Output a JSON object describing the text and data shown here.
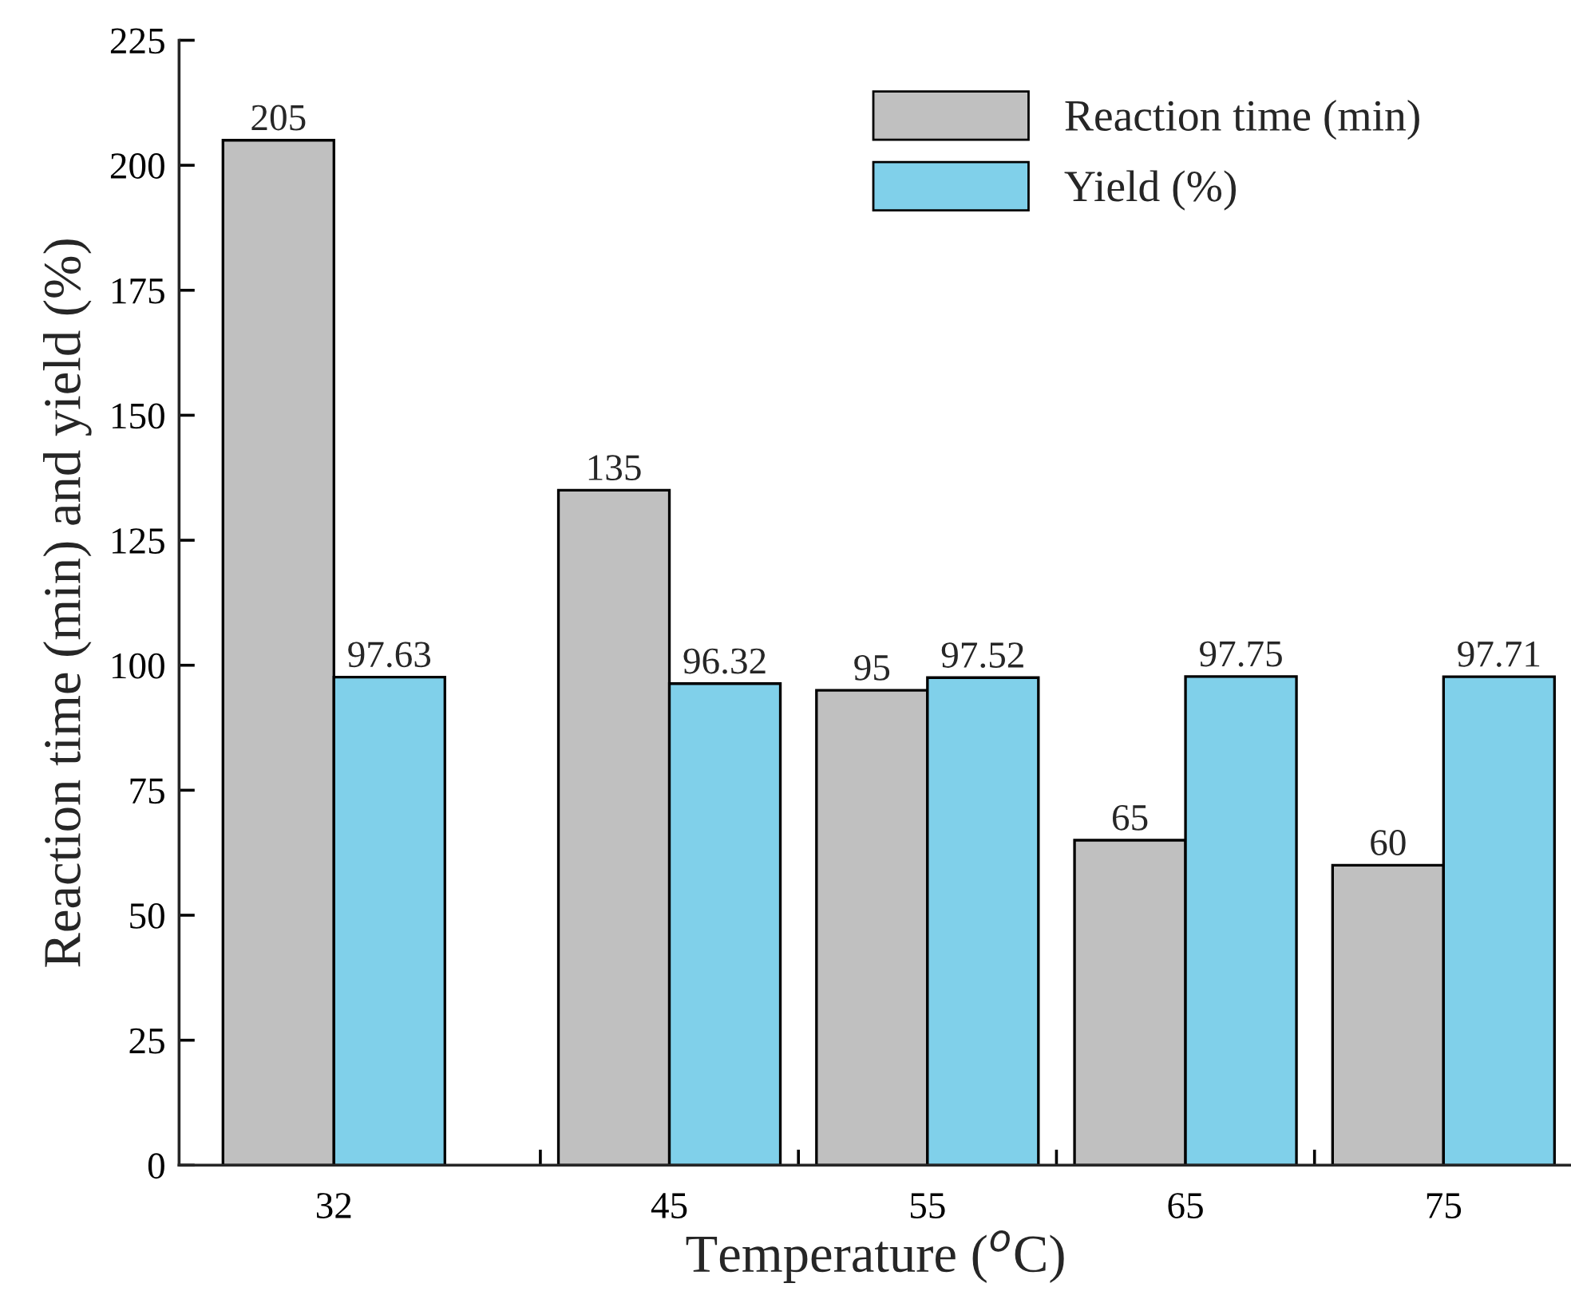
{
  "chart_data": {
    "type": "bar",
    "xlabel": "Temperature ($^{o}$C)",
    "ylabel": "Reaction time (min) and yield (%)",
    "x": [
      32,
      45,
      55,
      65,
      75
    ],
    "series": [
      {
        "name": "Reaction time (min)",
        "color": "#c0c0c0",
        "values": [
          205,
          135,
          95,
          65,
          60
        ]
      },
      {
        "name": "Yield (%)",
        "color": "#80d0ea",
        "values": [
          97.63,
          96.32,
          97.52,
          97.75,
          97.71
        ]
      }
    ],
    "data_labels": true,
    "xlim": [
      26,
      80
    ],
    "xticks": [
      {
        "value": 30,
        "label": null
      },
      32,
      {
        "value": 35,
        "label": null
      },
      {
        "value": 40,
        "label": null
      },
      45,
      {
        "value": 50,
        "label": null
      },
      55,
      {
        "value": 60,
        "label": null
      },
      65,
      {
        "value": 70,
        "label": null
      },
      75
    ],
    "ylim": [
      0,
      225
    ],
    "yticks": [
      0,
      25,
      50,
      75,
      100,
      125,
      150,
      175,
      200,
      225
    ],
    "legend": "top right",
    "grid": false
  }
}
